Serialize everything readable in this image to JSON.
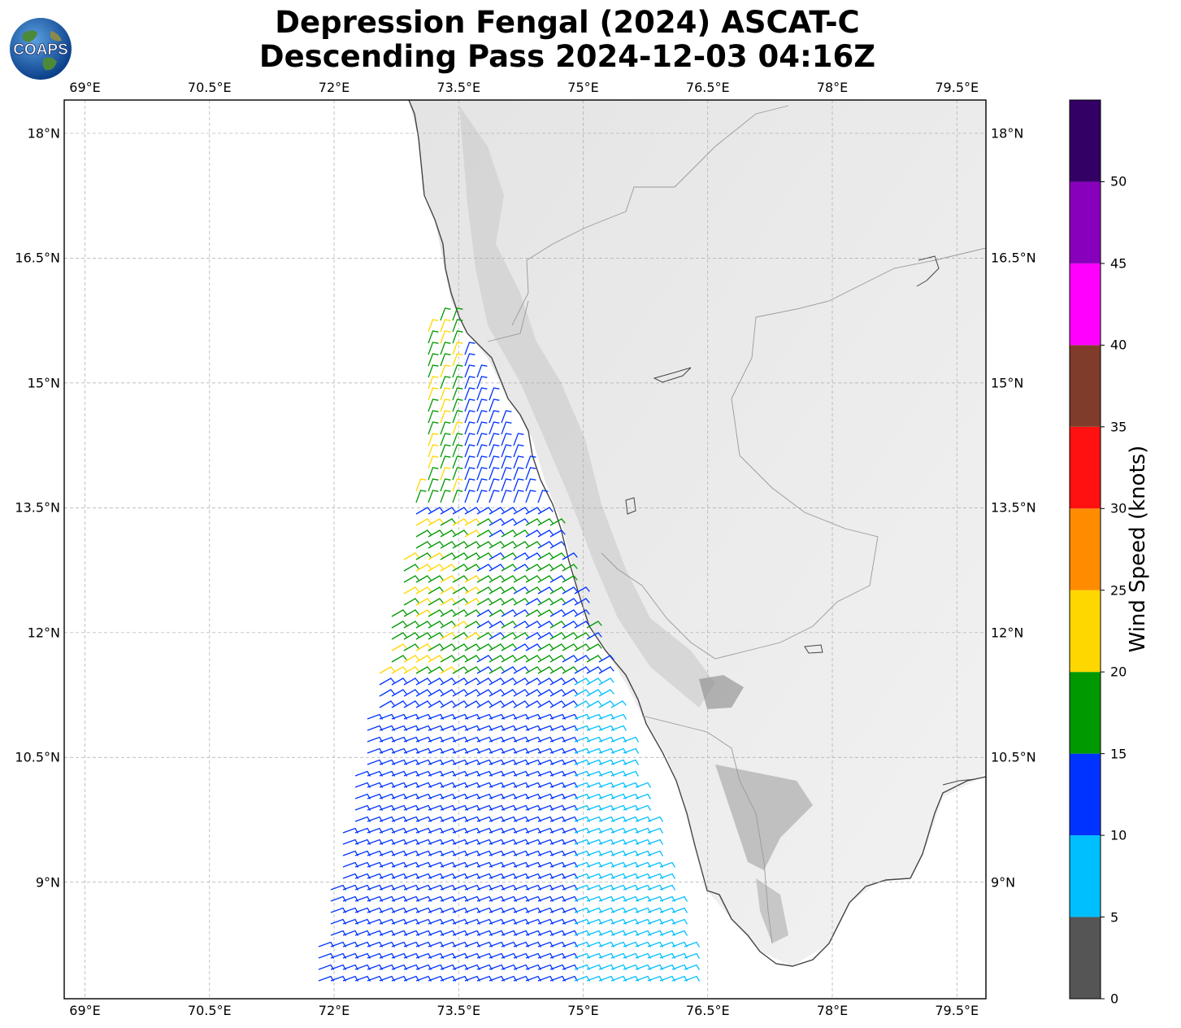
{
  "title": {
    "line1": "Depression Fengal (2024) ASCAT-C",
    "line2": "Descending Pass 2024-12-03 04:16Z"
  },
  "logo": {
    "text": "COAPS"
  },
  "map": {
    "lon_ticks": [
      "69°E",
      "70.5°E",
      "72°E",
      "73.5°E",
      "75°E",
      "76.5°E",
      "78°E",
      "79.5°E"
    ],
    "lat_ticks": [
      "18°N",
      "16.5°N",
      "15°N",
      "13.5°N",
      "12°N",
      "10.5°N",
      "9°N"
    ],
    "lon_range": [
      68.75,
      79.85
    ],
    "lat_range": [
      7.6,
      18.4
    ],
    "gridlines": true
  },
  "colorbar": {
    "label": "Wind Speed (knots)",
    "ticks": [
      "0",
      "5",
      "10",
      "15",
      "20",
      "25",
      "30",
      "35",
      "40",
      "45",
      "50"
    ],
    "bins": [
      {
        "from": 0,
        "to": 5,
        "color": "#555555"
      },
      {
        "from": 5,
        "to": 10,
        "color": "#00bfff"
      },
      {
        "from": 10,
        "to": 15,
        "color": "#0033ff"
      },
      {
        "from": 15,
        "to": 20,
        "color": "#009900"
      },
      {
        "from": 20,
        "to": 25,
        "color": "#ffd700"
      },
      {
        "from": 25,
        "to": 30,
        "color": "#ff8c00"
      },
      {
        "from": 30,
        "to": 35,
        "color": "#ff1111"
      },
      {
        "from": 35,
        "to": 40,
        "color": "#803c2a"
      },
      {
        "from": 40,
        "to": 45,
        "color": "#ff00ff"
      },
      {
        "from": 45,
        "to": 50,
        "color": "#8800bb"
      },
      {
        "from": 50,
        "to": 55,
        "color": "#330066"
      }
    ]
  }
}
